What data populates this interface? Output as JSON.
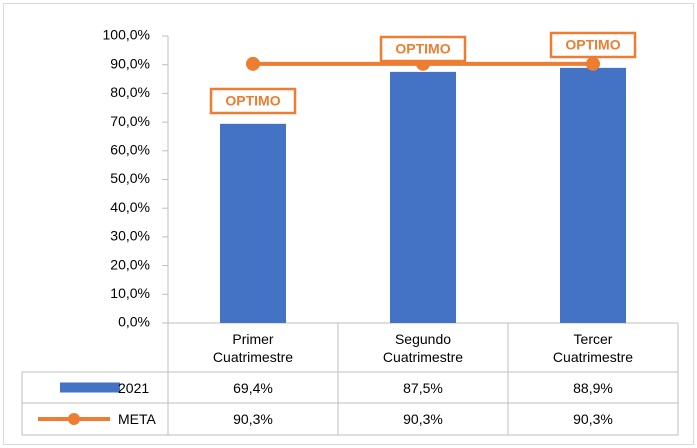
{
  "chart_data": {
    "type": "bar",
    "categories": [
      "Primer Cuatrimestre",
      "Segundo Cuatrimestre",
      "Tercer Cuatrimestre"
    ],
    "series": [
      {
        "name": "2021",
        "type": "bar",
        "color": "#4472c4",
        "values": [
          69.4,
          87.5,
          88.9
        ],
        "value_labels": [
          "69,4%",
          "87,5%",
          "88,9%"
        ]
      },
      {
        "name": "META",
        "type": "line",
        "color": "#ed7d31",
        "values": [
          90.3,
          90.3,
          90.3
        ],
        "value_labels": [
          "90,3%",
          "90,3%",
          "90,3%"
        ]
      }
    ],
    "ylim": [
      0,
      100
    ],
    "yticks": [
      {
        "value": 0,
        "label": "0,0%"
      },
      {
        "value": 10,
        "label": "10,0%"
      },
      {
        "value": 20,
        "label": "20,0%"
      },
      {
        "value": 30,
        "label": "30,0%"
      },
      {
        "value": 40,
        "label": "40,0%"
      },
      {
        "value": 50,
        "label": "50,0%"
      },
      {
        "value": 60,
        "label": "60,0%"
      },
      {
        "value": 70,
        "label": "70,0%"
      },
      {
        "value": 80,
        "label": "80,0%"
      },
      {
        "value": 90,
        "label": "90,0%"
      },
      {
        "value": 100,
        "label": "100,0%"
      }
    ],
    "annotations": [
      "OPTIMO",
      "OPTIMO",
      "OPTIMO"
    ],
    "data_table": true
  }
}
